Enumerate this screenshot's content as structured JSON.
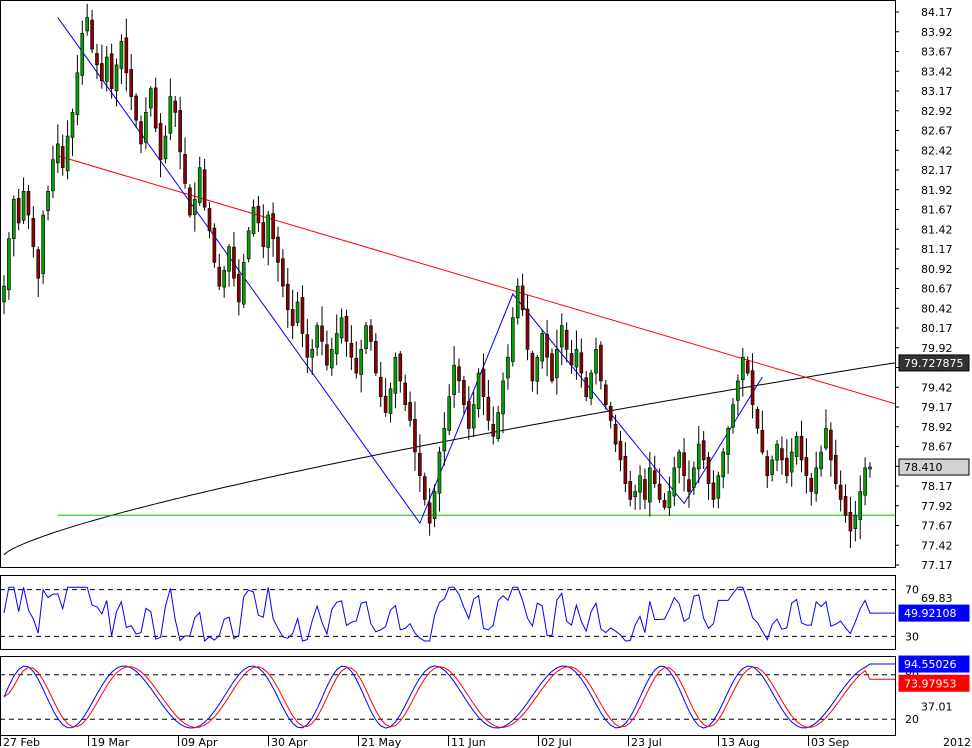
{
  "chart_data": [
    {
      "type": "candlestick",
      "panel": "price",
      "x_date_labels": [
        "27 Feb",
        "19 Mar",
        "09 Apr",
        "30 Apr",
        "21 May",
        "11 Jun",
        "02 Jul",
        "23 Jul",
        "13 Aug",
        "03 Sep",
        "2012"
      ],
      "y_tick_labels": [
        "84.17",
        "83.92",
        "83.67",
        "83.42",
        "83.17",
        "82.92",
        "82.67",
        "82.42",
        "82.17",
        "81.92",
        "81.67",
        "81.42",
        "81.17",
        "80.92",
        "80.67",
        "80.42",
        "80.17",
        "79.92",
        "79.67",
        "79.42",
        "79.17",
        "78.92",
        "78.67",
        "78.42",
        "78.17",
        "77.92",
        "77.67",
        "77.42",
        "77.17"
      ],
      "ylim": [
        77.17,
        84.17
      ],
      "close_series": [
        80.7,
        81.3,
        81.8,
        81.5,
        81.9,
        81.6,
        81.2,
        80.8,
        81.6,
        81.9,
        82.3,
        82.5,
        82.2,
        82.6,
        82.9,
        83.4,
        83.9,
        84.1,
        83.7,
        83.5,
        83.3,
        83.6,
        83.2,
        83.5,
        83.8,
        83.4,
        83.1,
        82.8,
        82.5,
        82.9,
        83.2,
        82.7,
        82.3,
        82.6,
        83.1,
        82.9,
        82.4,
        82.0,
        81.6,
        81.8,
        82.2,
        81.7,
        81.4,
        81.0,
        80.7,
        80.9,
        81.2,
        80.8,
        80.5,
        81.0,
        81.4,
        81.7,
        81.5,
        81.2,
        81.6,
        81.3,
        81.0,
        80.7,
        80.4,
        80.2,
        80.5,
        80.1,
        79.8,
        79.9,
        80.2,
        80.0,
        79.7,
        79.9,
        80.1,
        80.3,
        80.0,
        79.8,
        79.6,
        79.9,
        80.2,
        80.0,
        79.6,
        79.3,
        79.1,
        79.4,
        79.8,
        79.5,
        79.2,
        79.0,
        78.6,
        78.3,
        78.0,
        77.7,
        78.1,
        78.6,
        78.9,
        79.3,
        79.7,
        79.5,
        79.2,
        78.9,
        79.2,
        79.6,
        79.3,
        79.0,
        78.8,
        79.1,
        79.5,
        79.8,
        80.3,
        80.7,
        80.4,
        79.9,
        79.5,
        79.8,
        80.1,
        79.8,
        79.5,
        79.9,
        80.2,
        79.9,
        79.7,
        79.9,
        79.6,
        79.3,
        79.6,
        79.9,
        79.5,
        79.2,
        79.0,
        78.7,
        78.5,
        78.2,
        78.0,
        78.1,
        78.3,
        78.0,
        78.4,
        78.2,
        78.0,
        77.9,
        78.1,
        78.4,
        78.6,
        78.3,
        78.1,
        78.4,
        78.7,
        78.5,
        78.2,
        78.0,
        78.3,
        78.6,
        78.9,
        79.2,
        79.5,
        79.8,
        79.6,
        79.2,
        78.9,
        78.6,
        78.3,
        78.5,
        78.7,
        78.5,
        78.3,
        78.6,
        78.8,
        78.5,
        78.3,
        78.1,
        78.4,
        78.6,
        78.9,
        78.5,
        78.2,
        78.0,
        77.8,
        77.6,
        77.8,
        78.1,
        78.4,
        78.41
      ],
      "annotations": {
        "sma": {
          "value_label": "79.727875",
          "color": "#000000"
        },
        "last_price": {
          "value_label": "78.410"
        },
        "red_trendline": {
          "color": "#ff0000",
          "points": [
            {
              "bar": 11,
              "value": 82.35
            },
            {
              "bar": 188,
              "value": 79.12
            }
          ]
        },
        "green_support": {
          "color": "#00c000",
          "value": 77.8
        },
        "blue_zigzag": {
          "color": "#0000ff",
          "points": [
            {
              "bar": 11,
              "value": 84.1
            },
            {
              "bar": 85,
              "value": 77.7
            },
            {
              "bar": 104,
              "value": 80.6
            },
            {
              "bar": 139,
              "value": 77.95
            },
            {
              "bar": 155,
              "value": 79.55
            }
          ]
        }
      }
    },
    {
      "type": "line",
      "panel": "rsi",
      "ylim": [
        20,
        80
      ],
      "y_tick_labels": [
        "70",
        "69.83",
        "30"
      ],
      "levels": [
        70,
        30
      ],
      "series": [
        {
          "color": "#0000ff",
          "value_label": "49.92108"
        }
      ]
    },
    {
      "type": "line",
      "panel": "stochastic",
      "ylim": [
        0,
        100
      ],
      "y_tick_labels": [
        "80",
        "37.01",
        "20"
      ],
      "levels": [
        80,
        20
      ],
      "series": [
        {
          "color": "#0000ff",
          "value_label": "94.55026"
        },
        {
          "color": "#ff0000",
          "value_label": "73.97953"
        }
      ]
    }
  ]
}
